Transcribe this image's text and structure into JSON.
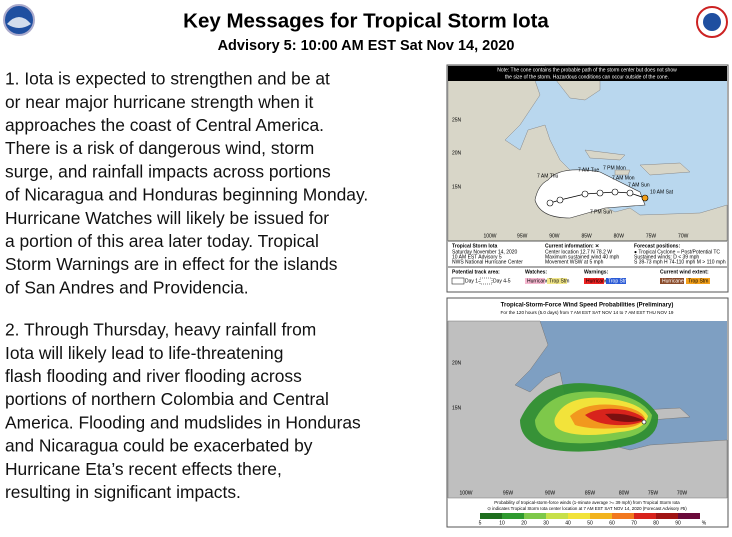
{
  "header": {
    "title": "Key Messages for Tropical Storm Iota",
    "subtitle": "Advisory 5:  10:00 AM EST Sat Nov 14, 2020"
  },
  "messages": [
    [
      "1. Iota is expected to strengthen and be at",
      "or near major hurricane strength when it",
      "approaches the coast of Central America.",
      "There is a risk of dangerous wind, storm",
      "surge, and rainfall impacts across portions",
      "of Nicaragua and Honduras beginning Monday.",
      "Hurricane Watches will likely be issued for",
      "a portion of this area later today. Tropical",
      "Storm Warnings are in effect for the islands",
      "of San Andres and Providencia."
    ],
    [
      "2. Through Thursday, heavy rainfall from",
      "Iota will likely lead to life-threatening",
      "flash flooding and river flooding across",
      "portions of northern Colombia and Central",
      "America. Flooding and mudslides in Honduras",
      "and Nicaragua could be exacerbated by",
      "Hurricane Eta’s recent effects there,",
      "resulting in significant impacts."
    ]
  ],
  "track_map": {
    "note": [
      "Note: The cone contains the probable path of the storm center but does not show",
      "the size of the storm. Hazardous conditions can occur outside of the cone."
    ],
    "lat_labels": [
      "25N",
      "20N",
      "15N"
    ],
    "lon_labels": [
      "100W",
      "95W",
      "90W",
      "85W",
      "80W",
      "75W",
      "70W"
    ],
    "track_labels": [
      "7 AM Tue",
      "7 PM Mon",
      "7 AM Mon",
      "7 AM Thu",
      "7 AM Sun",
      "10 AM Sat",
      "7 PM Sun"
    ],
    "storm": [
      "Tropical Storm Iota",
      "Saturday November 14, 2020",
      "10 AM EST Advisory 5",
      "NWS National Hurricane Center"
    ],
    "current": [
      "Current information: ✕",
      "Center location 12.7 N 78.2 W",
      "Maximum sustained wind 40 mph",
      "Movement WSW at 5 mph"
    ],
    "forecast": [
      "Forecast positions:",
      "● Tropical Cyclone  ○ Post/Potential TC",
      "Sustained winds:       D < 39 mph",
      "S 39-73 mph  H 74-110 mph  M > 110 mph"
    ],
    "legend": [
      "Potential track area:",
      "Day 1-3",
      "Day 4-5",
      "Watches:",
      "Hurricane",
      "Trop Stm",
      "Warnings:",
      "Hurricane",
      "Trop Stm",
      "Current wind extent:",
      "Hurricane",
      "Trop Stm"
    ]
  },
  "probability_map": {
    "title": "Tropical-Storm-Force Wind Speed Probabilities (Preliminary)",
    "subtitle": "For the 120 hours (5.0 days) from 7 AM EST SAT NOV 14 to 7 AM EST THU NOV 19",
    "lat_labels": [
      "20N",
      "15N"
    ],
    "lon_labels": [
      "100W",
      "95W",
      "90W",
      "85W",
      "80W",
      "75W",
      "70W"
    ],
    "caption": [
      "Probability of tropical-storm-force winds (1-minute average >= 39 mph) from Tropical Storm Iota",
      "⊙ indicates Tropical Storm Iota center location at 7 AM EST SAT NOV 14, 2020 (Forecast Advisory #5)"
    ],
    "scale": [
      "5",
      "10",
      "20",
      "30",
      "40",
      "50",
      "60",
      "70",
      "80",
      "90",
      "%"
    ]
  }
}
